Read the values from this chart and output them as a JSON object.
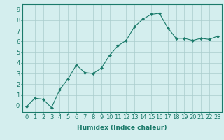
{
  "x": [
    0,
    1,
    2,
    3,
    4,
    5,
    6,
    7,
    8,
    9,
    10,
    11,
    12,
    13,
    14,
    15,
    16,
    17,
    18,
    19,
    20,
    21,
    22,
    23
  ],
  "y": [
    -0.1,
    0.7,
    0.6,
    -0.2,
    1.5,
    2.5,
    3.8,
    3.1,
    3.0,
    3.5,
    4.7,
    5.6,
    6.1,
    7.4,
    8.1,
    8.55,
    8.65,
    7.3,
    6.3,
    6.3,
    6.1,
    6.3,
    6.2,
    6.5
  ],
  "xlabel": "Humidex (Indice chaleur)",
  "xlim": [
    -0.5,
    23.5
  ],
  "ylim": [
    -0.6,
    9.5
  ],
  "yticks": [
    0,
    1,
    2,
    3,
    4,
    5,
    6,
    7,
    8,
    9
  ],
  "ytick_labels": [
    "-0",
    "1",
    "2",
    "3",
    "4",
    "5",
    "6",
    "7",
    "8",
    "9"
  ],
  "xticks": [
    0,
    1,
    2,
    3,
    4,
    5,
    6,
    7,
    8,
    9,
    10,
    11,
    12,
    13,
    14,
    15,
    16,
    17,
    18,
    19,
    20,
    21,
    22,
    23
  ],
  "line_color": "#1a7a6a",
  "bg_color": "#d4eeee",
  "grid_color": "#aacccc",
  "xlabel_fontsize": 6.5,
  "tick_fontsize": 6.0
}
